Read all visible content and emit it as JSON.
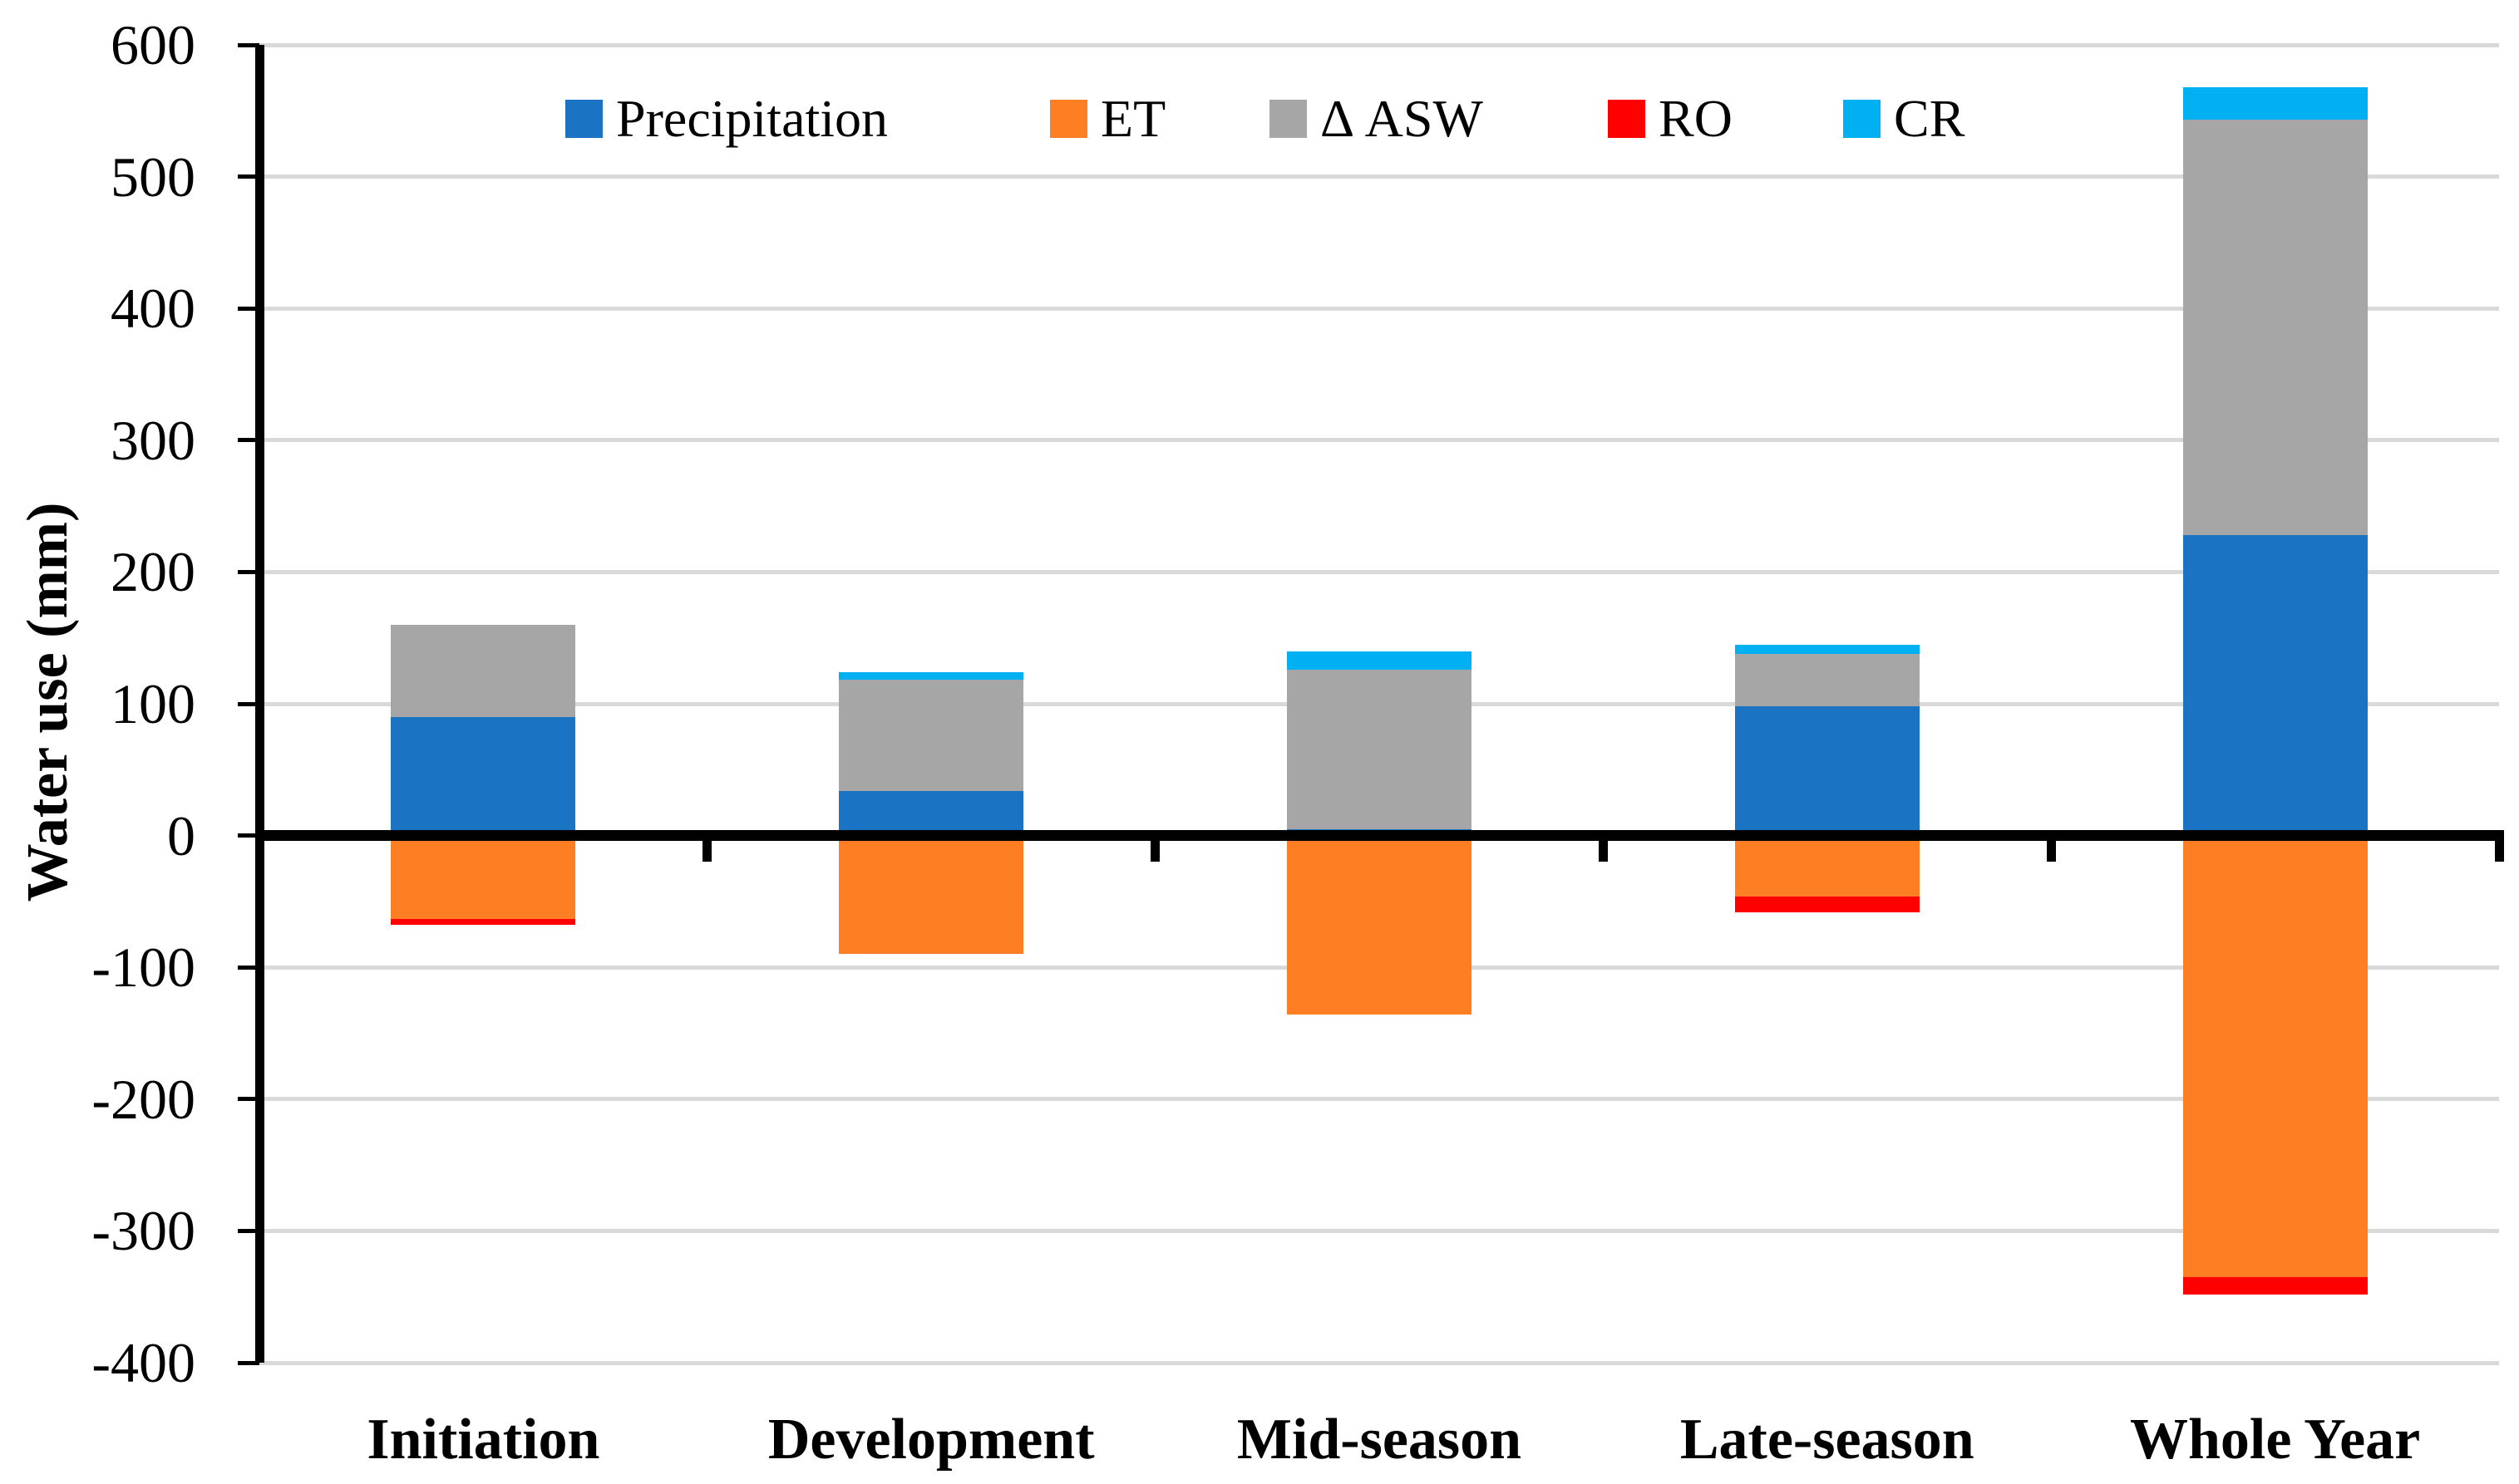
{
  "chart_data": {
    "type": "bar",
    "stacked": true,
    "title": "",
    "xlabel": "",
    "ylabel": "Water use (mm)",
    "categories": [
      "Initiation",
      "Development",
      "Mid-season",
      "Late-season",
      "Whole Year"
    ],
    "series": [
      {
        "name": "Precipitation",
        "color": "#1b73c4",
        "values": [
          90,
          34,
          5,
          98,
          228
        ]
      },
      {
        "name": "ET",
        "color": "#fd7e23",
        "values": [
          -63,
          -90,
          -136,
          -46,
          -335
        ]
      },
      {
        "name": "Δ ASW",
        "color": "#a6a6a6",
        "values": [
          70,
          84,
          121,
          40,
          315
        ]
      },
      {
        "name": "RO",
        "color": "#fe0000",
        "values": [
          -5,
          0,
          0,
          -12,
          -13
        ]
      },
      {
        "name": "CR",
        "color": "#00b0f0",
        "values": [
          0,
          6,
          14,
          7,
          25
        ]
      }
    ],
    "ylim": [
      -400,
      600
    ],
    "yticks": [
      600,
      500,
      400,
      300,
      200,
      100,
      0,
      -100,
      -200,
      -300,
      -400
    ],
    "grid": true,
    "gridline_color": "#d9d9d9",
    "axis_color": "#000000",
    "legend_position": "top-inside"
  }
}
